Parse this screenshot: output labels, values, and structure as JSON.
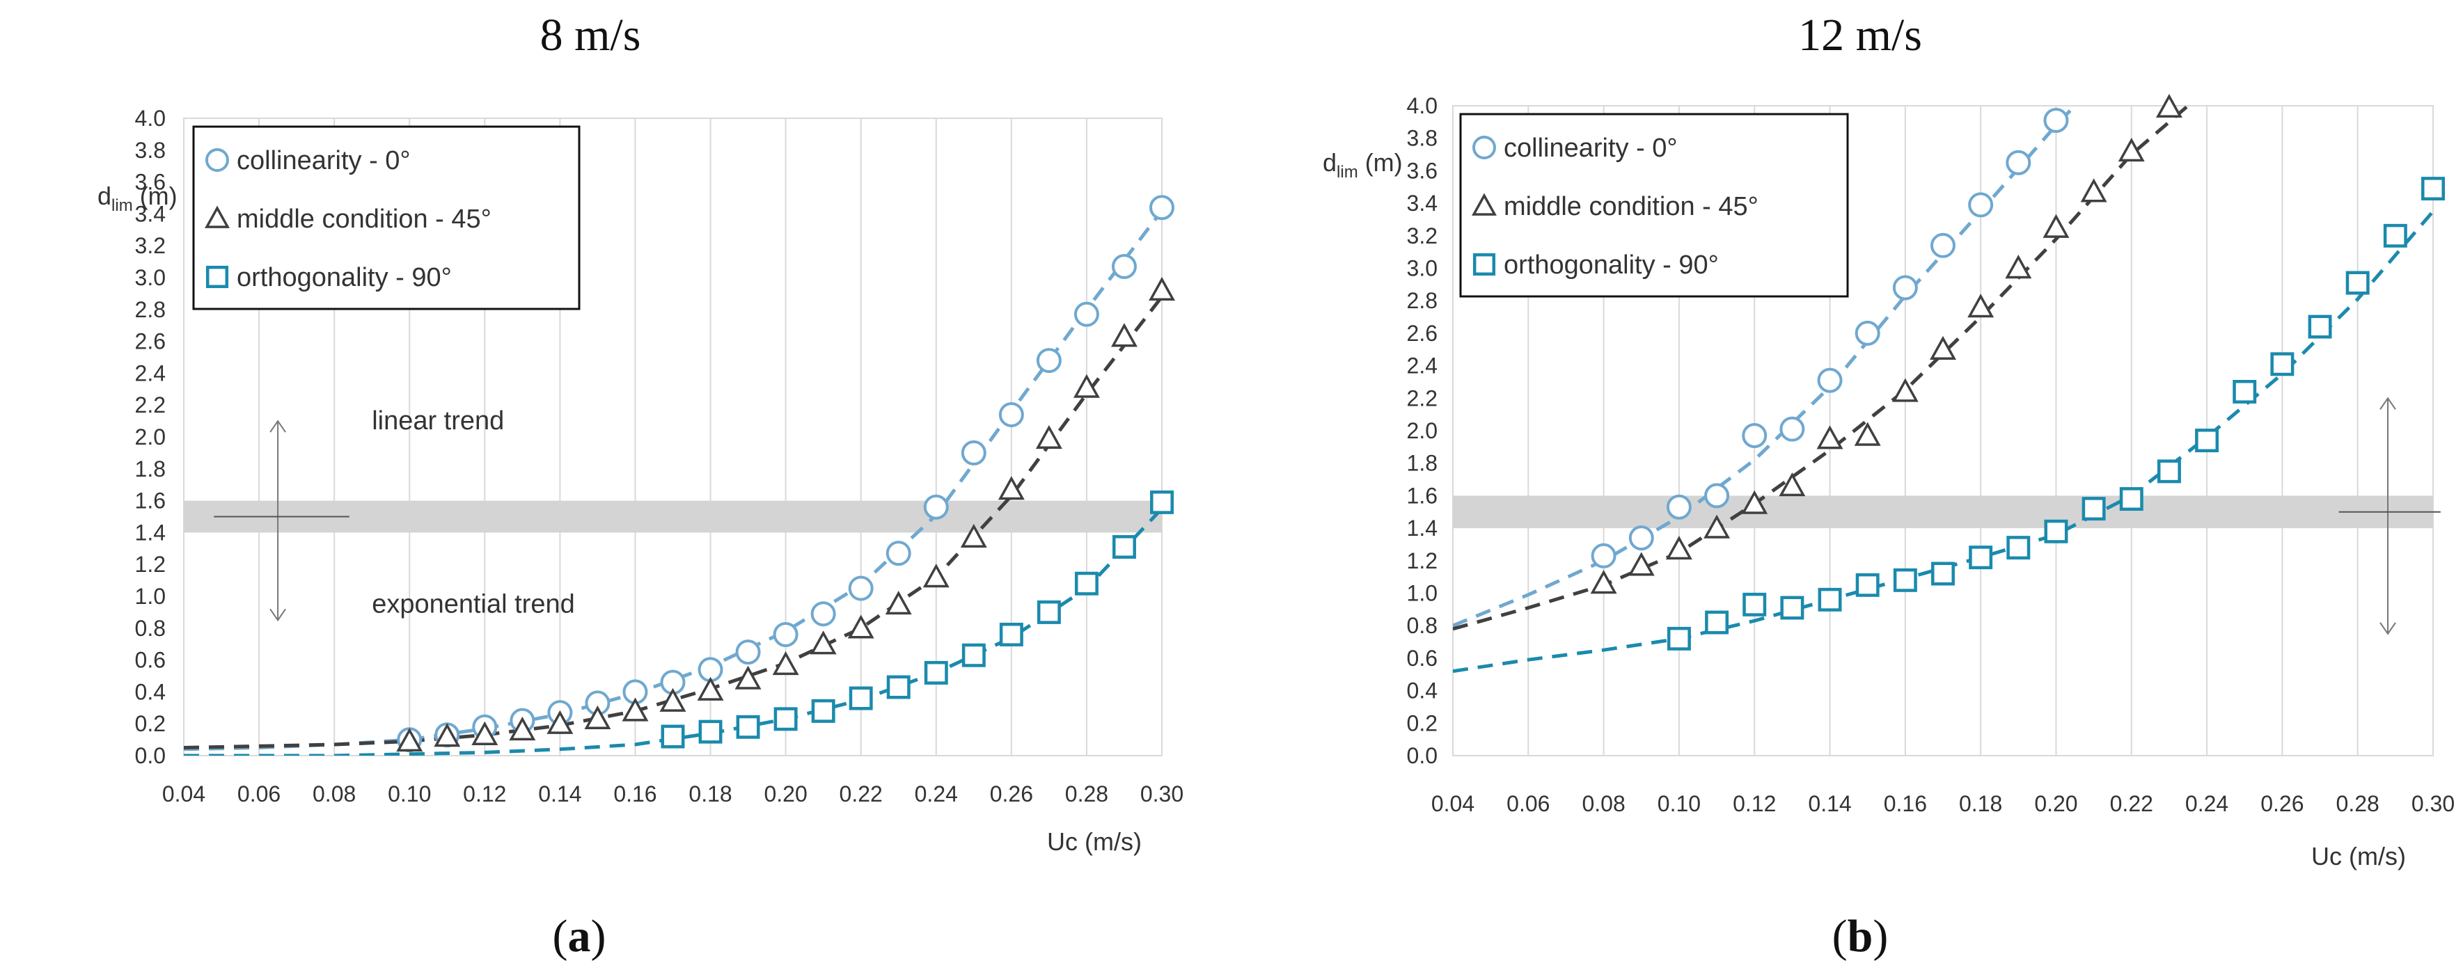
{
  "colors": {
    "collinearity": "#6fa8d0",
    "middle": "#404040",
    "orthogonality": "#1a8aad",
    "band": "#d4d4d4",
    "grid": "#d9d9d9",
    "text": "#333333"
  },
  "chart_data": [
    {
      "type": "scatter",
      "panel_title": "8 m/s",
      "caption_open": "(",
      "caption_letter": "a",
      "caption_close": ")",
      "ylabel_main": "d",
      "ylabel_sub": "lim",
      "ylabel_unit": "(m)",
      "xlabel": "Uc (m/s)",
      "xlim": [
        0.04,
        0.3
      ],
      "ylim": [
        0.0,
        4.0
      ],
      "xticks": [
        "0.04",
        "0.06",
        "0.08",
        "0.10",
        "0.12",
        "0.14",
        "0.16",
        "0.18",
        "0.20",
        "0.22",
        "0.24",
        "0.26",
        "0.28",
        "0.30"
      ],
      "yticks": [
        "0.0",
        "0.2",
        "0.4",
        "0.6",
        "0.8",
        "1.0",
        "1.2",
        "1.4",
        "1.6",
        "1.8",
        "2.0",
        "2.2",
        "2.4",
        "2.6",
        "2.8",
        "3.0",
        "3.2",
        "3.4",
        "3.6",
        "3.8",
        "4.0"
      ],
      "grid": "vertical",
      "band": [
        1.4,
        1.6
      ],
      "legend": [
        {
          "label": "collinearity - 0°",
          "marker": "circle"
        },
        {
          "label": "middle condition - 45°",
          "marker": "triangle"
        },
        {
          "label": "orthogonality - 90°",
          "marker": "square"
        }
      ],
      "annotations": {
        "upper_text": "linear trend",
        "lower_text": "exponential trend",
        "arrow_x": 0.065,
        "arrow_top": 2.1,
        "arrow_bottom": 0.85,
        "line_x": [
          0.048,
          0.084
        ],
        "line_y": 1.5,
        "upper_text_pos": [
          0.09,
          2.1
        ],
        "lower_text_pos": [
          0.09,
          0.95
        ]
      },
      "series": [
        {
          "name": "collinearity - 0°",
          "key": "collinearity",
          "marker": "circle",
          "x": [
            0.1,
            0.11,
            0.12,
            0.13,
            0.14,
            0.15,
            0.16,
            0.17,
            0.18,
            0.19,
            0.2,
            0.21,
            0.22,
            0.23,
            0.24,
            0.25,
            0.26,
            0.27,
            0.28,
            0.29,
            0.3
          ],
          "y": [
            0.1,
            0.13,
            0.18,
            0.22,
            0.27,
            0.33,
            0.4,
            0.46,
            0.54,
            0.65,
            0.76,
            0.89,
            1.05,
            1.27,
            1.56,
            1.9,
            2.14,
            2.48,
            2.77,
            3.07,
            3.44
          ],
          "trend": [
            [
              0.04,
              0.04
            ],
            [
              0.06,
              0.05
            ],
            [
              0.08,
              0.07
            ],
            [
              0.1,
              0.1
            ],
            [
              0.12,
              0.17
            ],
            [
              0.14,
              0.26
            ],
            [
              0.16,
              0.39
            ],
            [
              0.18,
              0.56
            ],
            [
              0.2,
              0.78
            ],
            [
              0.22,
              1.07
            ],
            [
              0.24,
              1.51
            ],
            [
              0.26,
              2.16
            ],
            [
              0.28,
              2.8
            ],
            [
              0.3,
              3.42
            ]
          ]
        },
        {
          "name": "middle condition - 45°",
          "key": "middle",
          "marker": "triangle",
          "x": [
            0.1,
            0.11,
            0.12,
            0.13,
            0.14,
            0.15,
            0.16,
            0.17,
            0.18,
            0.19,
            0.2,
            0.21,
            0.22,
            0.23,
            0.24,
            0.25,
            0.26,
            0.27,
            0.28,
            0.29,
            0.3
          ],
          "y": [
            0.09,
            0.12,
            0.13,
            0.16,
            0.2,
            0.23,
            0.28,
            0.34,
            0.41,
            0.48,
            0.57,
            0.7,
            0.8,
            0.95,
            1.12,
            1.37,
            1.67,
            1.99,
            2.31,
            2.63,
            2.92
          ],
          "trend": [
            [
              0.04,
              0.05
            ],
            [
              0.06,
              0.06
            ],
            [
              0.08,
              0.07
            ],
            [
              0.1,
              0.09
            ],
            [
              0.12,
              0.13
            ],
            [
              0.14,
              0.19
            ],
            [
              0.16,
              0.28
            ],
            [
              0.18,
              0.42
            ],
            [
              0.2,
              0.58
            ],
            [
              0.22,
              0.8
            ],
            [
              0.24,
              1.12
            ],
            [
              0.26,
              1.63
            ],
            [
              0.28,
              2.27
            ],
            [
              0.3,
              2.88
            ]
          ]
        },
        {
          "name": "orthogonality - 90°",
          "key": "orthogonality",
          "marker": "square",
          "x": [
            0.17,
            0.18,
            0.19,
            0.2,
            0.21,
            0.22,
            0.23,
            0.24,
            0.25,
            0.26,
            0.27,
            0.28,
            0.29,
            0.3
          ],
          "y": [
            0.12,
            0.15,
            0.18,
            0.23,
            0.28,
            0.36,
            0.43,
            0.52,
            0.63,
            0.76,
            0.9,
            1.08,
            1.31,
            1.59
          ],
          "trend": [
            [
              0.04,
              0.0
            ],
            [
              0.08,
              0.0
            ],
            [
              0.12,
              0.02
            ],
            [
              0.14,
              0.04
            ],
            [
              0.16,
              0.07
            ],
            [
              0.18,
              0.14
            ],
            [
              0.2,
              0.23
            ],
            [
              0.22,
              0.35
            ],
            [
              0.24,
              0.52
            ],
            [
              0.26,
              0.74
            ],
            [
              0.28,
              1.05
            ],
            [
              0.3,
              1.55
            ]
          ]
        }
      ]
    },
    {
      "type": "scatter",
      "panel_title": "12 m/s",
      "caption_open": "(",
      "caption_letter": "b",
      "caption_close": ")",
      "ylabel_main": "d",
      "ylabel_sub": "lim",
      "ylabel_unit": "(m)",
      "xlabel": "Uc (m/s)",
      "xlim": [
        0.04,
        0.3
      ],
      "ylim": [
        0.0,
        4.0
      ],
      "xticks": [
        "0.04",
        "0.06",
        "0.08",
        "0.10",
        "0.12",
        "0.14",
        "0.16",
        "0.18",
        "0.20",
        "0.22",
        "0.24",
        "0.26",
        "0.28",
        "0.30"
      ],
      "yticks": [
        "0.0",
        "0.2",
        "0.4",
        "0.6",
        "0.8",
        "1.0",
        "1.2",
        "1.4",
        "1.6",
        "1.8",
        "2.0",
        "2.2",
        "2.4",
        "2.6",
        "2.8",
        "3.0",
        "3.2",
        "3.4",
        "3.6",
        "3.8",
        "4.0"
      ],
      "grid": "vertical",
      "band": [
        1.4,
        1.6
      ],
      "legend": [
        {
          "label": "collinearity - 0°",
          "marker": "circle"
        },
        {
          "label": "middle condition - 45°",
          "marker": "triangle"
        },
        {
          "label": "orthogonality - 90°",
          "marker": "square"
        }
      ],
      "annotations": {
        "arrow_x": 0.288,
        "arrow_top": 2.2,
        "arrow_bottom": 0.75,
        "line_x": [
          0.275,
          0.302
        ],
        "line_y": 1.5
      },
      "series": [
        {
          "name": "collinearity - 0°",
          "key": "collinearity",
          "marker": "circle",
          "x": [
            0.08,
            0.09,
            0.1,
            0.11,
            0.12,
            0.13,
            0.14,
            0.15,
            0.16,
            0.17,
            0.18,
            0.19,
            0.2
          ],
          "y": [
            1.23,
            1.34,
            1.53,
            1.6,
            1.97,
            2.01,
            2.31,
            2.6,
            2.88,
            3.14,
            3.39,
            3.65,
            3.91
          ],
          "trend": [
            [
              0.04,
              0.8
            ],
            [
              0.06,
              0.99
            ],
            [
              0.08,
              1.2
            ],
            [
              0.1,
              1.47
            ],
            [
              0.12,
              1.82
            ],
            [
              0.14,
              2.27
            ],
            [
              0.16,
              2.83
            ],
            [
              0.18,
              3.35
            ],
            [
              0.2,
              3.88
            ],
            [
              0.205,
              4.0
            ]
          ]
        },
        {
          "name": "middle condition - 45°",
          "key": "middle",
          "marker": "triangle",
          "x": [
            0.08,
            0.09,
            0.1,
            0.11,
            0.12,
            0.13,
            0.14,
            0.15,
            0.16,
            0.17,
            0.18,
            0.19,
            0.2,
            0.21,
            0.22,
            0.23
          ],
          "y": [
            1.06,
            1.17,
            1.27,
            1.4,
            1.55,
            1.66,
            1.95,
            1.97,
            2.24,
            2.5,
            2.76,
            3.0,
            3.25,
            3.47,
            3.72,
            3.99
          ],
          "trend": [
            [
              0.04,
              0.78
            ],
            [
              0.06,
              0.91
            ],
            [
              0.08,
              1.05
            ],
            [
              0.1,
              1.25
            ],
            [
              0.12,
              1.55
            ],
            [
              0.14,
              1.88
            ],
            [
              0.16,
              2.25
            ],
            [
              0.18,
              2.7
            ],
            [
              0.2,
              3.18
            ],
            [
              0.22,
              3.7
            ],
            [
              0.235,
              4.0
            ]
          ]
        },
        {
          "name": "orthogonality - 90°",
          "key": "orthogonality",
          "marker": "square",
          "x": [
            0.1,
            0.11,
            0.12,
            0.13,
            0.14,
            0.15,
            0.16,
            0.17,
            0.18,
            0.19,
            0.2,
            0.21,
            0.22,
            0.23,
            0.24,
            0.25,
            0.26,
            0.27,
            0.28,
            0.29,
            0.3
          ],
          "y": [
            0.72,
            0.82,
            0.93,
            0.91,
            0.96,
            1.05,
            1.08,
            1.12,
            1.22,
            1.28,
            1.38,
            1.52,
            1.58,
            1.75,
            1.94,
            2.24,
            2.41,
            2.64,
            2.91,
            3.2,
            3.49
          ],
          "trend": [
            [
              0.04,
              0.52
            ],
            [
              0.06,
              0.59
            ],
            [
              0.08,
              0.65
            ],
            [
              0.1,
              0.72
            ],
            [
              0.12,
              0.83
            ],
            [
              0.14,
              0.96
            ],
            [
              0.16,
              1.09
            ],
            [
              0.18,
              1.22
            ],
            [
              0.2,
              1.36
            ],
            [
              0.22,
              1.6
            ],
            [
              0.24,
              1.96
            ],
            [
              0.26,
              2.35
            ],
            [
              0.28,
              2.81
            ],
            [
              0.3,
              3.35
            ]
          ]
        }
      ]
    }
  ]
}
